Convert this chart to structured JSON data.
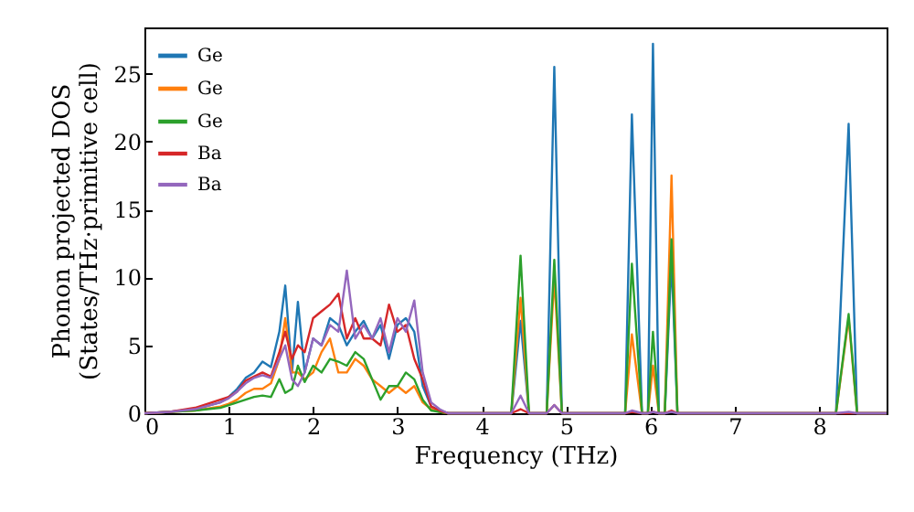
{
  "chart_data": {
    "type": "line",
    "xlabel": "Frequency (THz)",
    "ylabel": "Phonon projected DOS\n(States/THz·primitive cell)",
    "x": [
      0,
      0.3,
      0.6,
      0.9,
      1.0,
      1.1,
      1.2,
      1.3,
      1.4,
      1.5,
      1.6,
      1.67,
      1.75,
      1.82,
      1.9,
      2.0,
      2.1,
      2.2,
      2.3,
      2.4,
      2.5,
      2.6,
      2.7,
      2.8,
      2.9,
      3.0,
      3.1,
      3.2,
      3.3,
      3.4,
      3.5,
      3.6,
      3.8,
      4.35,
      4.46,
      4.56,
      4.77,
      4.86,
      4.95,
      5.7,
      5.78,
      5.9,
      5.97,
      6.03,
      6.1,
      6.17,
      6.25,
      6.32,
      8.2,
      8.35,
      8.45,
      8.8
    ],
    "series": [
      {
        "name": "Ge",
        "color": "#1f77b4",
        "values": [
          0,
          0.1,
          0.3,
          0.8,
          1.2,
          1.8,
          2.6,
          3.0,
          3.8,
          3.4,
          6,
          9.4,
          3,
          8.2,
          3,
          5.5,
          5,
          7,
          6.5,
          5,
          6,
          6.8,
          5.5,
          6.5,
          4,
          6.5,
          7,
          6,
          2,
          0.5,
          0.2,
          0,
          0,
          0,
          6.8,
          0,
          0,
          25.5,
          0,
          0,
          22,
          0,
          0,
          27.2,
          0,
          0,
          11.3,
          0,
          0,
          21.3,
          0,
          0
        ]
      },
      {
        "name": "Ge",
        "color": "#ff7f0e",
        "values": [
          0,
          0.1,
          0.2,
          0.5,
          0.7,
          1.0,
          1.5,
          1.8,
          1.8,
          2.2,
          4,
          7,
          3,
          3,
          2.5,
          3,
          4.5,
          5.5,
          3,
          3,
          4,
          3.5,
          2.5,
          2,
          1.5,
          2,
          1.5,
          2,
          0.8,
          0.3,
          0.1,
          0,
          0,
          0,
          8.5,
          0,
          0,
          10,
          0,
          0,
          5.8,
          0,
          0,
          3.5,
          0,
          0,
          17.5,
          0,
          0,
          7,
          0,
          0
        ]
      },
      {
        "name": "Ge",
        "color": "#2ca02c",
        "values": [
          0,
          0.1,
          0.2,
          0.4,
          0.6,
          0.8,
          1.0,
          1.2,
          1.3,
          1.2,
          2.5,
          1.5,
          1.8,
          3.5,
          2.3,
          3.5,
          3,
          4,
          3.8,
          3.5,
          4.5,
          4,
          2.5,
          1,
          2,
          2,
          3,
          2.5,
          1,
          0.2,
          0.1,
          0,
          0,
          0,
          11.6,
          0,
          0,
          11.3,
          0,
          0,
          11,
          0,
          0,
          6,
          0,
          0,
          12.8,
          0,
          0,
          7.3,
          0,
          0
        ]
      },
      {
        "name": "Ba",
        "color": "#d62728",
        "values": [
          0,
          0.1,
          0.4,
          1.0,
          1.2,
          1.6,
          2.4,
          2.7,
          3.0,
          2.7,
          4.5,
          6,
          4,
          5,
          4.5,
          7,
          7.5,
          8,
          8.8,
          5.5,
          7,
          5.5,
          5.5,
          5,
          8,
          6,
          6.5,
          4,
          2.5,
          0.5,
          0.2,
          0,
          0,
          0,
          0.3,
          0,
          0,
          0.6,
          0,
          0,
          0.1,
          0,
          0,
          0.1,
          0,
          0,
          0.2,
          0,
          0,
          0,
          0,
          0
        ]
      },
      {
        "name": "Ba",
        "color": "#9467bd",
        "values": [
          0,
          0.1,
          0.3,
          0.8,
          1.1,
          1.6,
          2.2,
          2.6,
          2.8,
          2.6,
          4,
          5,
          2.5,
          2,
          3,
          5.5,
          5,
          6.5,
          6,
          10.5,
          5.5,
          6.5,
          5.5,
          7,
          4.5,
          7,
          6,
          8.3,
          3,
          0.8,
          0.3,
          0,
          0,
          0,
          1.3,
          0,
          0,
          0.6,
          0,
          0,
          0.2,
          0,
          0,
          0.1,
          0,
          0,
          0.1,
          0,
          0,
          0.1,
          0,
          0
        ]
      }
    ],
    "xlim": [
      0,
      8.8
    ],
    "xticks": [
      0,
      1,
      2,
      3,
      4,
      5,
      6,
      7,
      8
    ],
    "ylim": [
      0,
      28.4
    ],
    "yticks": [
      0,
      5,
      10,
      15,
      20,
      25
    ],
    "legend": "top left"
  }
}
